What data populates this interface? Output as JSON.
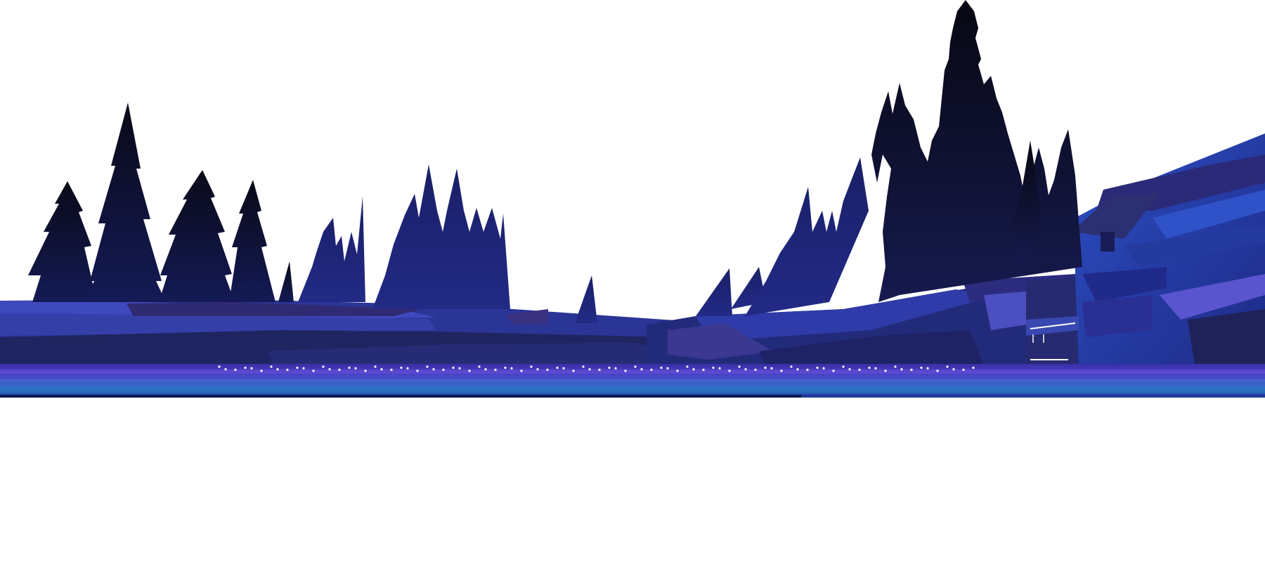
{
  "scene": {
    "description_colors": {
      "background": "#ffffff",
      "tree_dark": "#0b0b1e",
      "tree_mid": "#141858",
      "tree_blue": "#1c2378",
      "ground_light": "#3b45b8",
      "ground_mid": "#2a3190",
      "ground_dark": "#1c1f57",
      "cliff_blue": "#2a45b0",
      "water_band": "#2f5fbf",
      "water_glow": "#7a4fd6",
      "lights": "#ffffff"
    }
  }
}
